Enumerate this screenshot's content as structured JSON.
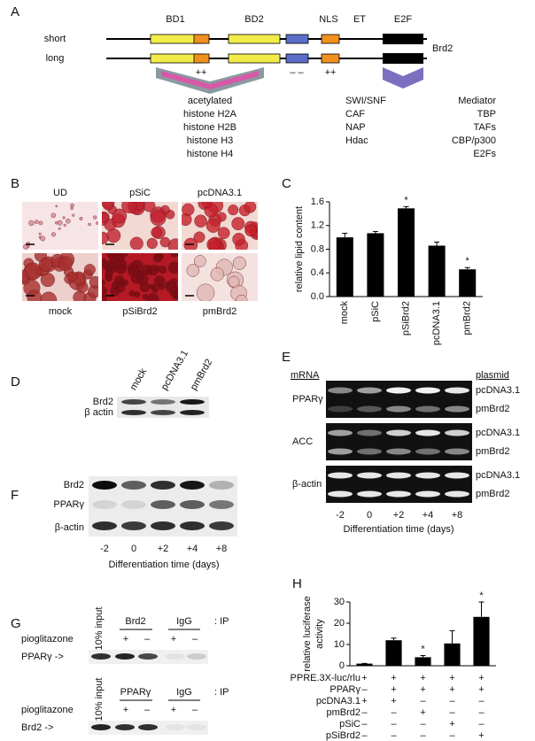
{
  "panel_a": {
    "label": "A",
    "rows": [
      "short",
      "long"
    ],
    "domains": [
      "BD1",
      "BD2",
      "NLS",
      "ET",
      "E2F"
    ],
    "protein": "Brd2",
    "charges": [
      "++",
      "– –",
      "++"
    ],
    "bd_partners": [
      "acetylated",
      "histone H2A",
      "histone H2B",
      "histone H3",
      "histone H4"
    ],
    "et_partners": [
      "SWI/SNF",
      "CAF",
      "NAP",
      "Hdac"
    ],
    "e2f_partners": [
      "Mediator",
      "TBP",
      "TAFs",
      "CBP/p300",
      "E2Fs"
    ]
  },
  "panel_b": {
    "label": "B",
    "top": [
      "UD",
      "pSiC",
      "pcDNA3.1"
    ],
    "bottom": [
      "mock",
      "pSiBrd2",
      "pmBrd2"
    ]
  },
  "panel_d": {
    "label": "D",
    "lanes": [
      "mock",
      "pcDNA3.1",
      "pmBrd2"
    ],
    "bands": [
      "Brd2",
      "β actin"
    ]
  },
  "panel_e": {
    "label": "E",
    "left_header": "mRNA",
    "right_header": "plasmid",
    "genes": [
      "PPARγ",
      "ACC",
      "β-actin"
    ],
    "plasmids": [
      "pcDNA3.1",
      "pmBrd2",
      "pcDNA3.1",
      "pmBrd2",
      "pcDNA3.1",
      "pmBrd2"
    ],
    "times": [
      "-2",
      "0",
      "+2",
      "+4",
      "+8"
    ],
    "xlabel": "Differentiation time (days)"
  },
  "panel_f": {
    "label": "F",
    "bands": [
      "Brd2",
      "PPARγ",
      "β-actin"
    ],
    "times": [
      "-2",
      "0",
      "+2",
      "+4",
      "+8"
    ],
    "xlabel": "Differentiation time (days)"
  },
  "panel_g": {
    "label": "G",
    "blots": [
      {
        "input": "10% input",
        "antibodies": [
          "Brd2",
          "IgG"
        ],
        "ip": ": IP",
        "treatment": "pioglitazone",
        "signs": [
          "+",
          "–",
          "+",
          "–"
        ],
        "target": "PPARγ ->"
      },
      {
        "input": "10% input",
        "antibodies": [
          "PPARγ",
          "IgG"
        ],
        "ip": ": IP",
        "treatment": "pioglitazone",
        "signs": [
          "+",
          "–",
          "+",
          "–"
        ],
        "target": "Brd2 ->"
      }
    ]
  },
  "chart_data": [
    {
      "type": "bar",
      "label": "C",
      "ylabel": [
        "relative lipid content"
      ],
      "color": "#000000",
      "categories": [
        "mock",
        "pSiC",
        "pSiBrd2",
        "pcDNA3.1",
        "pmBrd2"
      ],
      "values": [
        1.0,
        1.07,
        1.49,
        0.86,
        0.46
      ],
      "errors": [
        0.07,
        0.03,
        0.03,
        0.06,
        0.03
      ],
      "significance": [
        null,
        null,
        "*",
        null,
        "*"
      ],
      "ylim": [
        0,
        1.6
      ],
      "yticks": [
        {
          "value": 0,
          "label": "0.0"
        },
        0.4,
        0.8,
        1.2,
        1.6
      ]
    },
    {
      "type": "bar",
      "label": "H",
      "ylabel": [
        "relative luciferase",
        "activity"
      ],
      "color": "#000000",
      "values": [
        1,
        12,
        4,
        10.5,
        23
      ],
      "errors": [
        0.1,
        1,
        0.8,
        6,
        7
      ],
      "significance": [
        null,
        null,
        "*",
        null,
        "*"
      ],
      "ylim": [
        0,
        30
      ],
      "yticks": [
        0,
        10,
        20,
        30
      ],
      "conditions": [
        {
          "label": "PPRE.3X-luc/rlu",
          "signs": [
            "+",
            "+",
            "+",
            "+",
            "+"
          ]
        },
        {
          "label": "PPARγ",
          "signs": [
            "–",
            "+",
            "+",
            "+",
            "+"
          ]
        },
        {
          "label": "pcDNA3.1",
          "signs": [
            "+",
            "+",
            "–",
            "–",
            "–"
          ]
        },
        {
          "label": "pmBrd2",
          "signs": [
            "–",
            "–",
            "+",
            "–",
            "–"
          ]
        },
        {
          "label": "pSiC",
          "signs": [
            "–",
            "–",
            "–",
            "+",
            "–"
          ]
        },
        {
          "label": "pSiBrd2",
          "signs": [
            "–",
            "–",
            "–",
            "–",
            "+"
          ]
        }
      ]
    }
  ]
}
